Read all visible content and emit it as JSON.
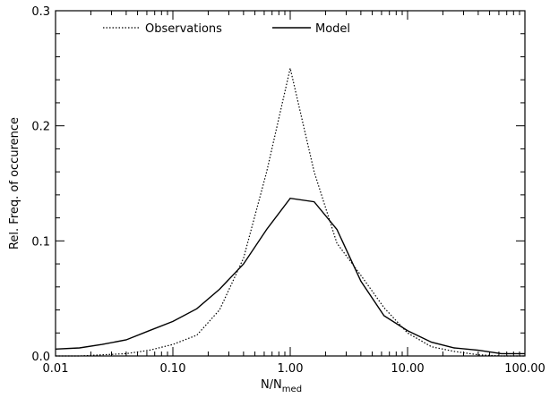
{
  "chart_data": {
    "type": "line",
    "xscale": "log",
    "xlim": [
      0.01,
      100
    ],
    "ylim": [
      0,
      0.3
    ],
    "xlabel": "N/N",
    "xlabel_sub": "med",
    "ylabel": "Rel. Freq. of occurence",
    "xticks": [
      {
        "value": 0.01,
        "label": "0.01"
      },
      {
        "value": 0.1,
        "label": "0.10"
      },
      {
        "value": 1,
        "label": "1.00"
      },
      {
        "value": 10,
        "label": "10.00"
      },
      {
        "value": 100,
        "label": "100.00"
      }
    ],
    "yticks": [
      {
        "value": 0,
        "label": "0.0"
      },
      {
        "value": 0.1,
        "label": "0.1"
      },
      {
        "value": 0.2,
        "label": "0.2"
      },
      {
        "value": 0.3,
        "label": "0.3"
      }
    ],
    "series": [
      {
        "name": "Observations",
        "style": "dotted",
        "color": "#000000",
        "x": [
          0.01,
          0.016,
          0.025,
          0.04,
          0.063,
          0.1,
          0.16,
          0.25,
          0.4,
          0.63,
          1.0,
          1.6,
          2.5,
          4.0,
          6.3,
          10,
          16,
          25,
          40,
          63,
          100
        ],
        "y": [
          0.0,
          0.0,
          0.001,
          0.002,
          0.005,
          0.01,
          0.018,
          0.04,
          0.085,
          0.16,
          0.25,
          0.16,
          0.098,
          0.07,
          0.042,
          0.02,
          0.008,
          0.004,
          0.001,
          0.0,
          0.0
        ]
      },
      {
        "name": "Model",
        "style": "solid",
        "color": "#000000",
        "x": [
          0.01,
          0.016,
          0.025,
          0.04,
          0.063,
          0.1,
          0.16,
          0.25,
          0.4,
          0.63,
          1.0,
          1.6,
          2.5,
          4.0,
          6.3,
          10,
          16,
          25,
          40,
          63,
          100
        ],
        "y": [
          0.006,
          0.007,
          0.01,
          0.014,
          0.022,
          0.03,
          0.041,
          0.058,
          0.08,
          0.11,
          0.137,
          0.134,
          0.11,
          0.065,
          0.035,
          0.022,
          0.012,
          0.007,
          0.005,
          0.002,
          0.002
        ]
      }
    ],
    "legend": {
      "placement": "top",
      "entries": [
        "Observations",
        "Model"
      ]
    }
  }
}
